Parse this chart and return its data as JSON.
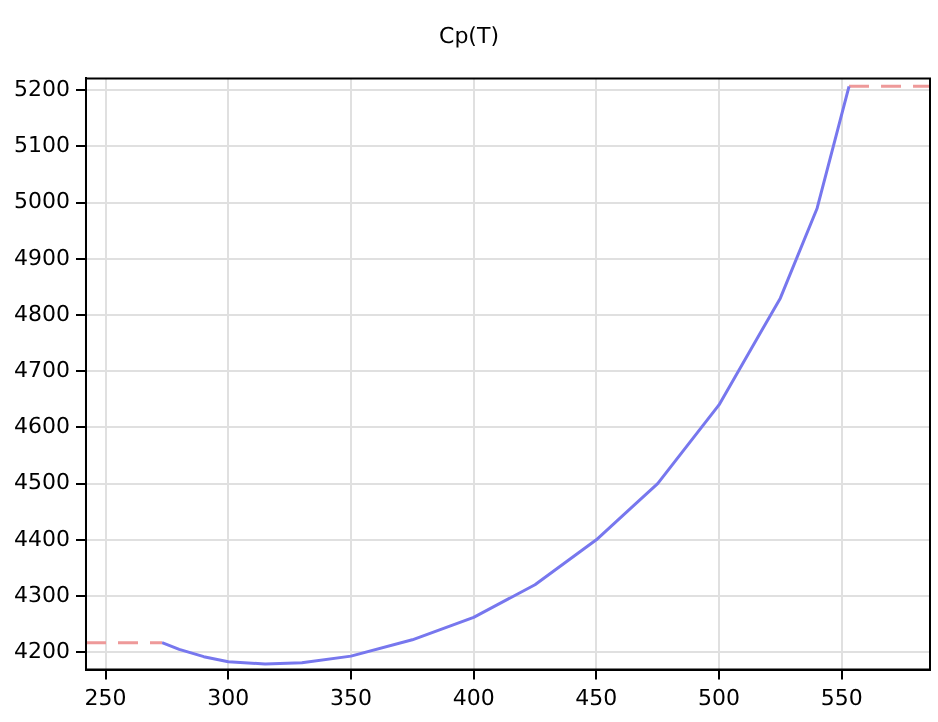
{
  "chart_data": {
    "type": "line",
    "title": "Cp(T)",
    "xlim": [
      242,
      586
    ],
    "xticks": [
      250,
      300,
      350,
      400,
      450,
      500,
      550
    ],
    "ylim": [
      4169,
      5221
    ],
    "yticks": [
      4200,
      4300,
      4400,
      4500,
      4600,
      4700,
      4800,
      4900,
      5000,
      5100,
      5200
    ],
    "grid": true,
    "legend": false,
    "series": [
      {
        "color": "#ee9999",
        "line_style": "dashed",
        "x": [
          242,
          273
        ],
        "values": [
          4217,
          4217
        ]
      },
      {
        "color": "#7777ee",
        "line_style": "solid",
        "x": [
          273,
          280,
          290,
          300,
          315,
          330,
          350,
          375,
          400,
          425,
          450,
          475,
          500,
          525,
          540,
          553
        ],
        "values": [
          4217,
          4205,
          4192,
          4183,
          4179,
          4181,
          4193,
          4222,
          4262,
          4320,
          4400,
          4500,
          4640,
          4830,
          4990,
          5207
        ]
      },
      {
        "color": "#ee9999",
        "line_style": "dashed",
        "x": [
          553,
          586
        ],
        "values": [
          5207,
          5207
        ]
      }
    ]
  }
}
